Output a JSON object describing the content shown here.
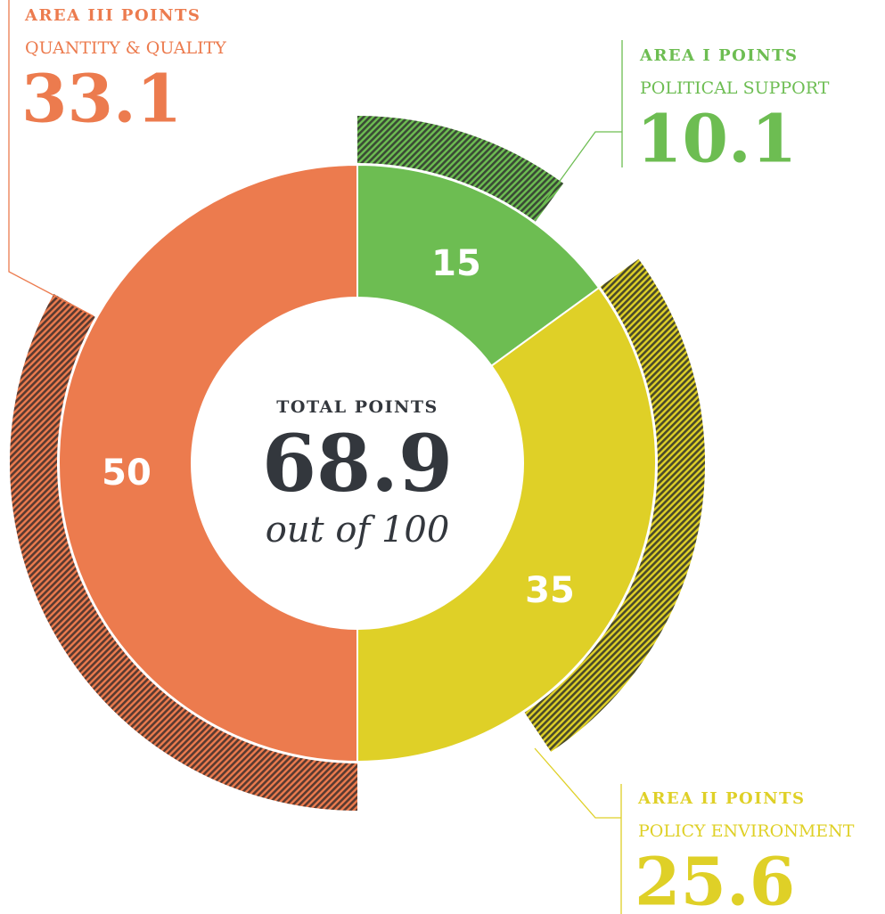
{
  "chart_data": {
    "type": "donut",
    "categories": [
      "AREA I POINTS",
      "AREA II POINTS",
      "AREA III POINTS"
    ],
    "subtitles": [
      "POLITICAL SUPPORT",
      "POLICY ENVIRONMENT",
      "QUANTITY & QUALITY"
    ],
    "values": [
      15,
      35,
      50
    ],
    "scores": [
      10.1,
      25.6,
      33.1
    ],
    "colors": [
      "#6dbd52",
      "#dfd027",
      "#ec7b4e"
    ],
    "hatch_colors": [
      "#3a4a35",
      "#4a4a2a",
      "#5a3a30"
    ],
    "center_title": "TOTAL POINTS",
    "total": 68.9,
    "total_label": "out of 100"
  }
}
